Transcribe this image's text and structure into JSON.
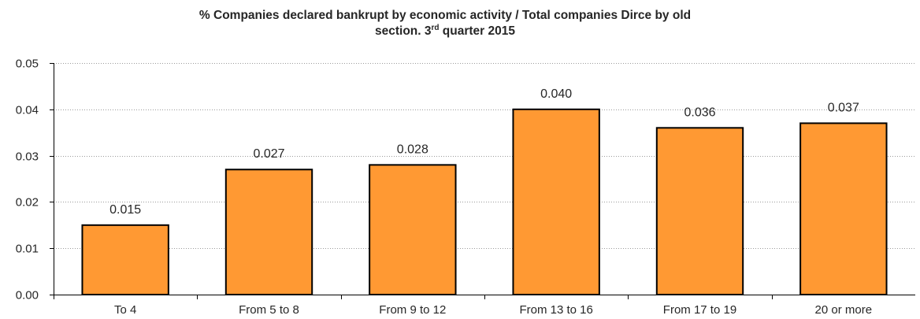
{
  "chart_data": {
    "type": "bar",
    "title_line1": "% Companies declared bankrupt by economic activity / Total companies Dirce by old",
    "title_line2_pre": "section. 3",
    "title_line2_sup": "rd",
    "title_line2_post": " quarter 2015",
    "categories": [
      "To 4",
      "From 5 to 8",
      "From 9 to 12",
      "From 13 to 16",
      "From 17 to 19",
      "20 or more"
    ],
    "values": [
      0.015,
      0.027,
      0.028,
      0.04,
      0.036,
      0.037
    ],
    "data_labels": [
      "0.015",
      "0.027",
      "0.028",
      "0.040",
      "0.036",
      "0.037"
    ],
    "yticks": [
      "0.00",
      "0.01",
      "0.02",
      "0.03",
      "0.04",
      "0.05"
    ],
    "ylim": [
      0,
      0.05
    ],
    "xlabel": "",
    "ylabel": "",
    "grid": "dotted horizontal",
    "legend": "none",
    "bar_color": "#FF9933",
    "bar_edge_color": "#000000"
  }
}
